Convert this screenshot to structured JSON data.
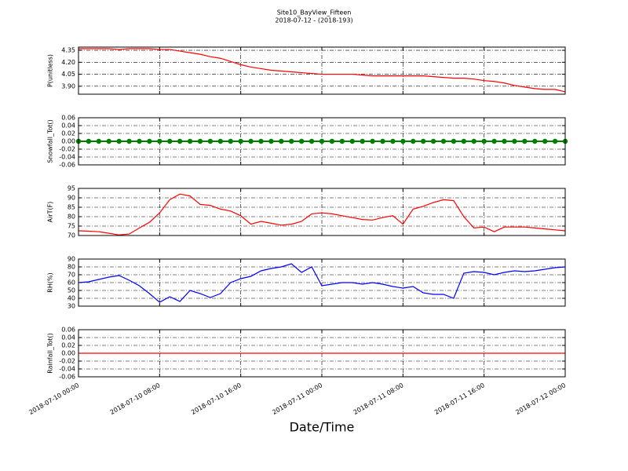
{
  "chart_data": [
    {
      "type": "line",
      "title": "Site10_BayView_Fifteen",
      "subtitle": "2018-07-12 - (2018-193)",
      "ylabel": "P(unitless)",
      "color": "#ff0000",
      "grid": true,
      "xlim": [
        "2018-07-10 00:00",
        "2018-07-12 00:00"
      ],
      "ylim": [
        3.8,
        4.39
      ],
      "yticks": [
        {
          "value": 3.9,
          "label": "3.90"
        },
        4.05,
        {
          "value": 4.2,
          "label": "4.20"
        },
        4.35
      ],
      "x": [
        "2018-07-10 00:00",
        "2018-07-10 01:00",
        "2018-07-10 02:00",
        "2018-07-10 03:00",
        "2018-07-10 04:00",
        "2018-07-10 05:00",
        "2018-07-10 06:00",
        "2018-07-10 07:00",
        "2018-07-10 08:00",
        "2018-07-10 09:00",
        "2018-07-10 10:00",
        "2018-07-10 11:00",
        "2018-07-10 12:00",
        "2018-07-10 13:00",
        "2018-07-10 14:00",
        "2018-07-10 15:00",
        "2018-07-10 16:00",
        "2018-07-10 17:00",
        "2018-07-10 18:00",
        "2018-07-10 19:00",
        "2018-07-10 20:00",
        "2018-07-10 21:00",
        "2018-07-10 22:00",
        "2018-07-10 23:00",
        "2018-07-11 00:00",
        "2018-07-11 01:00",
        "2018-07-11 02:00",
        "2018-07-11 03:00",
        "2018-07-11 04:00",
        "2018-07-11 05:00",
        "2018-07-11 06:00",
        "2018-07-11 07:00",
        "2018-07-11 08:00",
        "2018-07-11 09:00",
        "2018-07-11 10:00",
        "2018-07-11 11:00",
        "2018-07-11 12:00",
        "2018-07-11 13:00",
        "2018-07-11 14:00",
        "2018-07-11 15:00",
        "2018-07-11 16:00",
        "2018-07-11 17:00",
        "2018-07-11 18:00",
        "2018-07-11 19:00",
        "2018-07-11 20:00",
        "2018-07-11 21:00",
        "2018-07-11 22:00",
        "2018-07-11 23:00",
        "2018-07-12 00:00"
      ],
      "values": [
        4.37,
        4.37,
        4.37,
        4.37,
        4.36,
        4.37,
        4.37,
        4.37,
        4.36,
        4.36,
        4.34,
        4.32,
        4.3,
        4.27,
        4.25,
        4.21,
        4.17,
        4.14,
        4.12,
        4.1,
        4.09,
        4.08,
        4.07,
        4.06,
        4.05,
        4.05,
        4.05,
        4.05,
        4.04,
        4.03,
        4.03,
        4.03,
        4.03,
        4.03,
        4.03,
        4.02,
        4.01,
        4.0,
        4.0,
        3.99,
        3.97,
        3.96,
        3.94,
        3.91,
        3.89,
        3.87,
        3.86,
        3.86,
        3.83
      ]
    },
    {
      "type": "line",
      "ylabel": "Snowfall_Tot()",
      "color": "#008000",
      "marker": true,
      "grid": true,
      "xlim": [
        "2018-07-10 00:00",
        "2018-07-12 00:00"
      ],
      "ylim": [
        -0.06,
        0.06
      ],
      "yticks": [
        -0.06,
        -0.04,
        -0.02,
        {
          "value": 0,
          "label": "0.00"
        },
        0.02,
        0.04,
        0.06
      ],
      "x": [
        "2018-07-10 00:00",
        "2018-07-10 01:00",
        "2018-07-10 02:00",
        "2018-07-10 03:00",
        "2018-07-10 04:00",
        "2018-07-10 05:00",
        "2018-07-10 06:00",
        "2018-07-10 07:00",
        "2018-07-10 08:00",
        "2018-07-10 09:00",
        "2018-07-10 10:00",
        "2018-07-10 11:00",
        "2018-07-10 12:00",
        "2018-07-10 13:00",
        "2018-07-10 14:00",
        "2018-07-10 15:00",
        "2018-07-10 16:00",
        "2018-07-10 17:00",
        "2018-07-10 18:00",
        "2018-07-10 19:00",
        "2018-07-10 20:00",
        "2018-07-10 21:00",
        "2018-07-10 22:00",
        "2018-07-10 23:00",
        "2018-07-11 00:00",
        "2018-07-11 01:00",
        "2018-07-11 02:00",
        "2018-07-11 03:00",
        "2018-07-11 04:00",
        "2018-07-11 05:00",
        "2018-07-11 06:00",
        "2018-07-11 07:00",
        "2018-07-11 08:00",
        "2018-07-11 09:00",
        "2018-07-11 10:00",
        "2018-07-11 11:00",
        "2018-07-11 12:00",
        "2018-07-11 13:00",
        "2018-07-11 14:00",
        "2018-07-11 15:00",
        "2018-07-11 16:00",
        "2018-07-11 17:00",
        "2018-07-11 18:00",
        "2018-07-11 19:00",
        "2018-07-11 20:00",
        "2018-07-11 21:00",
        "2018-07-11 22:00",
        "2018-07-11 23:00",
        "2018-07-12 00:00"
      ],
      "values": [
        0,
        0,
        0,
        0,
        0,
        0,
        0,
        0,
        0,
        0,
        0,
        0,
        0,
        0,
        0,
        0,
        0,
        0,
        0,
        0,
        0,
        0,
        0,
        0,
        0,
        0,
        0,
        0,
        0,
        0,
        0,
        0,
        0,
        0,
        0,
        0,
        0,
        0,
        0,
        0,
        0,
        0,
        0,
        0,
        0,
        0,
        0,
        0,
        0
      ]
    },
    {
      "type": "line",
      "ylabel": "AirT(F)",
      "color": "#ff0000",
      "grid": true,
      "xlim": [
        "2018-07-10 00:00",
        "2018-07-12 00:00"
      ],
      "ylim": [
        70,
        95
      ],
      "yticks": [
        70,
        75,
        80,
        85,
        90,
        95
      ],
      "x": [
        "2018-07-10 00:00",
        "2018-07-10 01:00",
        "2018-07-10 02:00",
        "2018-07-10 03:00",
        "2018-07-10 04:00",
        "2018-07-10 05:00",
        "2018-07-10 06:00",
        "2018-07-10 07:00",
        "2018-07-10 08:00",
        "2018-07-10 09:00",
        "2018-07-10 10:00",
        "2018-07-10 11:00",
        "2018-07-10 12:00",
        "2018-07-10 13:00",
        "2018-07-10 14:00",
        "2018-07-10 15:00",
        "2018-07-10 16:00",
        "2018-07-10 17:00",
        "2018-07-10 18:00",
        "2018-07-10 19:00",
        "2018-07-10 20:00",
        "2018-07-10 21:00",
        "2018-07-10 22:00",
        "2018-07-10 23:00",
        "2018-07-11 00:00",
        "2018-07-11 01:00",
        "2018-07-11 02:00",
        "2018-07-11 03:00",
        "2018-07-11 04:00",
        "2018-07-11 05:00",
        "2018-07-11 06:00",
        "2018-07-11 07:00",
        "2018-07-11 08:00",
        "2018-07-11 09:00",
        "2018-07-11 10:00",
        "2018-07-11 11:00",
        "2018-07-11 12:00",
        "2018-07-11 13:00",
        "2018-07-11 14:00",
        "2018-07-11 15:00",
        "2018-07-11 16:00",
        "2018-07-11 17:00",
        "2018-07-11 18:00",
        "2018-07-11 19:00",
        "2018-07-11 20:00",
        "2018-07-11 21:00",
        "2018-07-11 22:00",
        "2018-07-11 23:00",
        "2018-07-12 00:00"
      ],
      "values": [
        72.5,
        72.3,
        72,
        71.2,
        70.3,
        70.8,
        74,
        77,
        82,
        89,
        92,
        91,
        86.5,
        86,
        84,
        83,
        80.5,
        76,
        77.5,
        76.5,
        75.5,
        76,
        77.5,
        81.5,
        82,
        81.5,
        80.5,
        79.5,
        78.5,
        78.2,
        79.5,
        80.5,
        76,
        84,
        85.5,
        87.5,
        89,
        88.5,
        80,
        74,
        74.5,
        72,
        74.5,
        74.5,
        74.5,
        74,
        73.5,
        73,
        72.5
      ]
    },
    {
      "type": "line",
      "ylabel": "RH(%)",
      "color": "#0000ff",
      "grid": true,
      "xlim": [
        "2018-07-10 00:00",
        "2018-07-12 00:00"
      ],
      "ylim": [
        30,
        90
      ],
      "yticks": [
        30,
        40,
        50,
        60,
        70,
        80,
        90
      ],
      "x": [
        "2018-07-10 00:00",
        "2018-07-10 01:00",
        "2018-07-10 02:00",
        "2018-07-10 03:00",
        "2018-07-10 04:00",
        "2018-07-10 05:00",
        "2018-07-10 06:00",
        "2018-07-10 07:00",
        "2018-07-10 08:00",
        "2018-07-10 09:00",
        "2018-07-10 10:00",
        "2018-07-10 11:00",
        "2018-07-10 12:00",
        "2018-07-10 13:00",
        "2018-07-10 14:00",
        "2018-07-10 15:00",
        "2018-07-10 16:00",
        "2018-07-10 17:00",
        "2018-07-10 18:00",
        "2018-07-10 19:00",
        "2018-07-10 20:00",
        "2018-07-10 21:00",
        "2018-07-10 22:00",
        "2018-07-10 23:00",
        "2018-07-11 00:00",
        "2018-07-11 01:00",
        "2018-07-11 02:00",
        "2018-07-11 03:00",
        "2018-07-11 04:00",
        "2018-07-11 05:00",
        "2018-07-11 06:00",
        "2018-07-11 07:00",
        "2018-07-11 08:00",
        "2018-07-11 09:00",
        "2018-07-11 10:00",
        "2018-07-11 11:00",
        "2018-07-11 12:00",
        "2018-07-11 13:00",
        "2018-07-11 14:00",
        "2018-07-11 15:00",
        "2018-07-11 16:00",
        "2018-07-11 17:00",
        "2018-07-11 18:00",
        "2018-07-11 19:00",
        "2018-07-11 20:00",
        "2018-07-11 21:00",
        "2018-07-11 22:00",
        "2018-07-11 23:00",
        "2018-07-12 00:00"
      ],
      "values": [
        60,
        61,
        64,
        67,
        69,
        63,
        56,
        46,
        35,
        42,
        36,
        50,
        46,
        41,
        46,
        60,
        65,
        68,
        75,
        78,
        80,
        84,
        73,
        80,
        56,
        58,
        60,
        60,
        58,
        60,
        58,
        55,
        53,
        55,
        47,
        45,
        45,
        40,
        72,
        74,
        73,
        70,
        73,
        75,
        74,
        75,
        77,
        79,
        80
      ]
    },
    {
      "type": "line",
      "ylabel": "Rainfall_Tot()",
      "xlabel": "Date/Time",
      "color": "#ff0000",
      "grid": true,
      "xlim": [
        "2018-07-10 00:00",
        "2018-07-12 00:00"
      ],
      "ylim": [
        -0.06,
        0.06
      ],
      "yticks": [
        -0.06,
        -0.04,
        -0.02,
        {
          "value": 0,
          "label": "0.00"
        },
        0.02,
        0.04,
        0.06
      ],
      "xticks": [
        "2018-07-10 00:00",
        "2018-07-10 08:00",
        "2018-07-10 16:00",
        "2018-07-11 00:00",
        "2018-07-11 08:00",
        "2018-07-11 16:00",
        "2018-07-12 00:00"
      ],
      "x": [
        "2018-07-10 00:00",
        "2018-07-10 01:00",
        "2018-07-10 02:00",
        "2018-07-10 03:00",
        "2018-07-10 04:00",
        "2018-07-10 05:00",
        "2018-07-10 06:00",
        "2018-07-10 07:00",
        "2018-07-10 08:00",
        "2018-07-10 09:00",
        "2018-07-10 10:00",
        "2018-07-10 11:00",
        "2018-07-10 12:00",
        "2018-07-10 13:00",
        "2018-07-10 14:00",
        "2018-07-10 15:00",
        "2018-07-10 16:00",
        "2018-07-10 17:00",
        "2018-07-10 18:00",
        "2018-07-10 19:00",
        "2018-07-10 20:00",
        "2018-07-10 21:00",
        "2018-07-10 22:00",
        "2018-07-10 23:00",
        "2018-07-11 00:00",
        "2018-07-11 01:00",
        "2018-07-11 02:00",
        "2018-07-11 03:00",
        "2018-07-11 04:00",
        "2018-07-11 05:00",
        "2018-07-11 06:00",
        "2018-07-11 07:00",
        "2018-07-11 08:00",
        "2018-07-11 09:00",
        "2018-07-11 10:00",
        "2018-07-11 11:00",
        "2018-07-11 12:00",
        "2018-07-11 13:00",
        "2018-07-11 14:00",
        "2018-07-11 15:00",
        "2018-07-11 16:00",
        "2018-07-11 17:00",
        "2018-07-11 18:00",
        "2018-07-11 19:00",
        "2018-07-11 20:00",
        "2018-07-11 21:00",
        "2018-07-11 22:00",
        "2018-07-11 23:00",
        "2018-07-12 00:00"
      ],
      "values": [
        0,
        0,
        0,
        0,
        0,
        0,
        0,
        0,
        0,
        0,
        0,
        0,
        0,
        0,
        0,
        0,
        0,
        0,
        0,
        0,
        0,
        0,
        0,
        0,
        0,
        0,
        0,
        0,
        0,
        0,
        0,
        0,
        0,
        0,
        0,
        0,
        0,
        0,
        0,
        0,
        0,
        0,
        0,
        0,
        0,
        0,
        0,
        0,
        0
      ]
    }
  ]
}
